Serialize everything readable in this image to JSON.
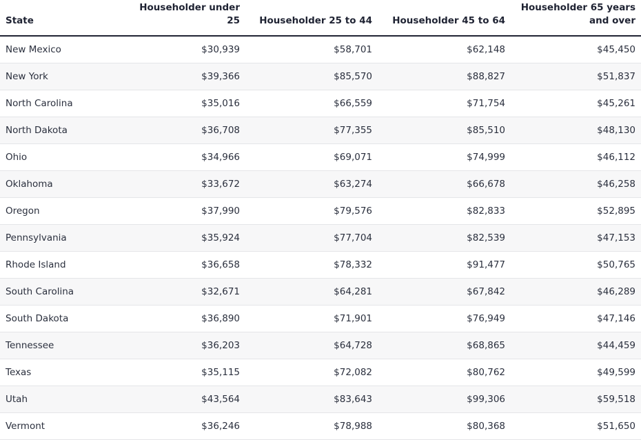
{
  "table": {
    "headers": [
      "State",
      "Householder under 25",
      "Householder 25 to 44",
      "Householder 45 to 64",
      "Householder 65 years and over"
    ],
    "rows": [
      [
        "New Mexico",
        "$30,939",
        "$58,701",
        "$62,148",
        "$45,450"
      ],
      [
        "New York",
        "$39,366",
        "$85,570",
        "$88,827",
        "$51,837"
      ],
      [
        "North Carolina",
        "$35,016",
        "$66,559",
        "$71,754",
        "$45,261"
      ],
      [
        "North Dakota",
        "$36,708",
        "$77,355",
        "$85,510",
        "$48,130"
      ],
      [
        "Ohio",
        "$34,966",
        "$69,071",
        "$74,999",
        "$46,112"
      ],
      [
        "Oklahoma",
        "$33,672",
        "$63,274",
        "$66,678",
        "$46,258"
      ],
      [
        "Oregon",
        "$37,990",
        "$79,576",
        "$82,833",
        "$52,895"
      ],
      [
        "Pennsylvania",
        "$35,924",
        "$77,704",
        "$82,539",
        "$47,153"
      ],
      [
        "Rhode Island",
        "$36,658",
        "$78,332",
        "$91,477",
        "$50,765"
      ],
      [
        "South Carolina",
        "$32,671",
        "$64,281",
        "$67,842",
        "$46,289"
      ],
      [
        "South Dakota",
        "$36,890",
        "$71,901",
        "$76,949",
        "$47,146"
      ],
      [
        "Tennessee",
        "$36,203",
        "$64,728",
        "$68,865",
        "$44,459"
      ],
      [
        "Texas",
        "$35,115",
        "$72,082",
        "$80,762",
        "$49,599"
      ],
      [
        "Utah",
        "$43,564",
        "$83,643",
        "$99,306",
        "$59,518"
      ],
      [
        "Vermont",
        "$36,246",
        "$78,988",
        "$80,368",
        "$51,650"
      ]
    ]
  }
}
